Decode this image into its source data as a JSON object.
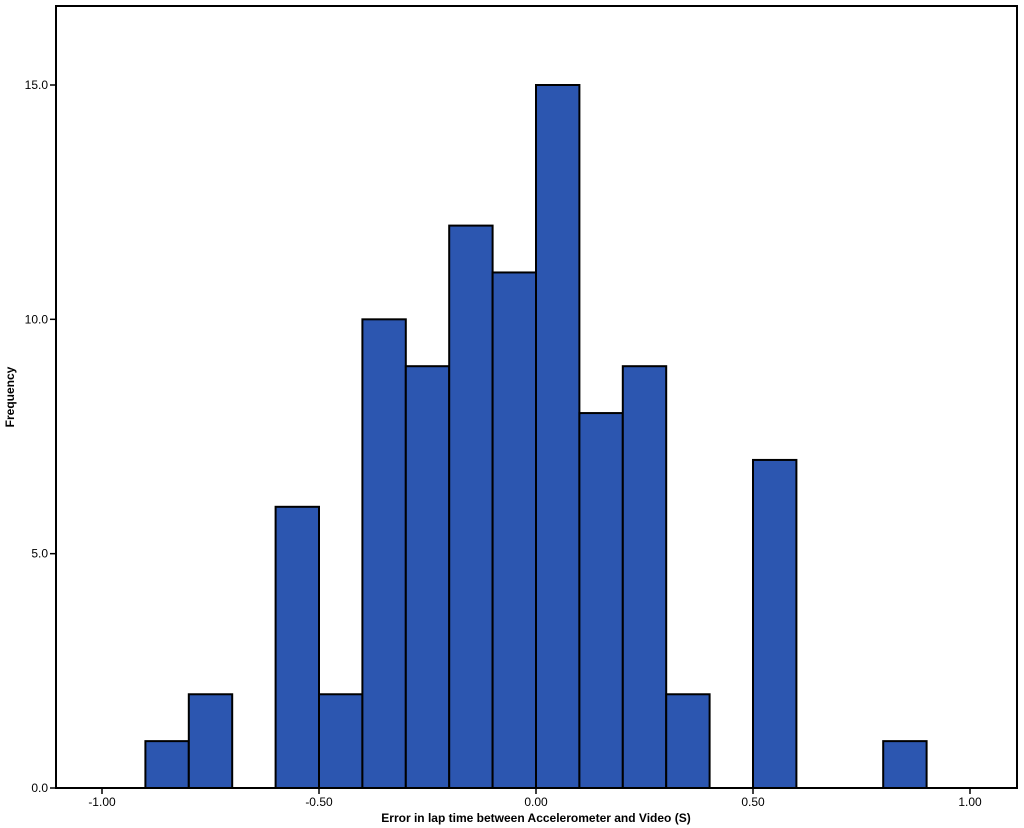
{
  "chart_data": {
    "type": "bar",
    "subtype": "histogram",
    "title": "",
    "xlabel": "Error in lap time between Accelerometer and Video (S)",
    "ylabel": "Frequency",
    "xlim": [
      -1.1,
      1.1
    ],
    "ylim": [
      0,
      15
    ],
    "x_ticks": [
      -1.0,
      -0.5,
      0.0,
      0.5,
      1.0
    ],
    "x_tick_labels": [
      "-1.00",
      "-0.50",
      "0.00",
      "0.50",
      "1.00"
    ],
    "y_ticks": [
      0,
      5,
      10,
      15
    ],
    "y_tick_labels": [
      "0.0",
      "5.0",
      "10.0",
      "15.0"
    ],
    "bin_width": 0.1,
    "bins": [
      {
        "start": -0.9,
        "end": -0.8,
        "value": 1
      },
      {
        "start": -0.8,
        "end": -0.7,
        "value": 2
      },
      {
        "start": -0.6,
        "end": -0.5,
        "value": 6
      },
      {
        "start": -0.5,
        "end": -0.4,
        "value": 2
      },
      {
        "start": -0.4,
        "end": -0.3,
        "value": 10
      },
      {
        "start": -0.3,
        "end": -0.2,
        "value": 9
      },
      {
        "start": -0.2,
        "end": -0.1,
        "value": 12
      },
      {
        "start": -0.1,
        "end": 0.0,
        "value": 11
      },
      {
        "start": 0.0,
        "end": 0.1,
        "value": 15
      },
      {
        "start": 0.1,
        "end": 0.2,
        "value": 8
      },
      {
        "start": 0.2,
        "end": 0.3,
        "value": 9
      },
      {
        "start": 0.3,
        "end": 0.4,
        "value": 2
      },
      {
        "start": 0.5,
        "end": 0.6,
        "value": 7
      },
      {
        "start": 0.8,
        "end": 0.9,
        "value": 1
      }
    ],
    "bar_color": "#2c56b0",
    "grid": false,
    "legend": "none"
  }
}
